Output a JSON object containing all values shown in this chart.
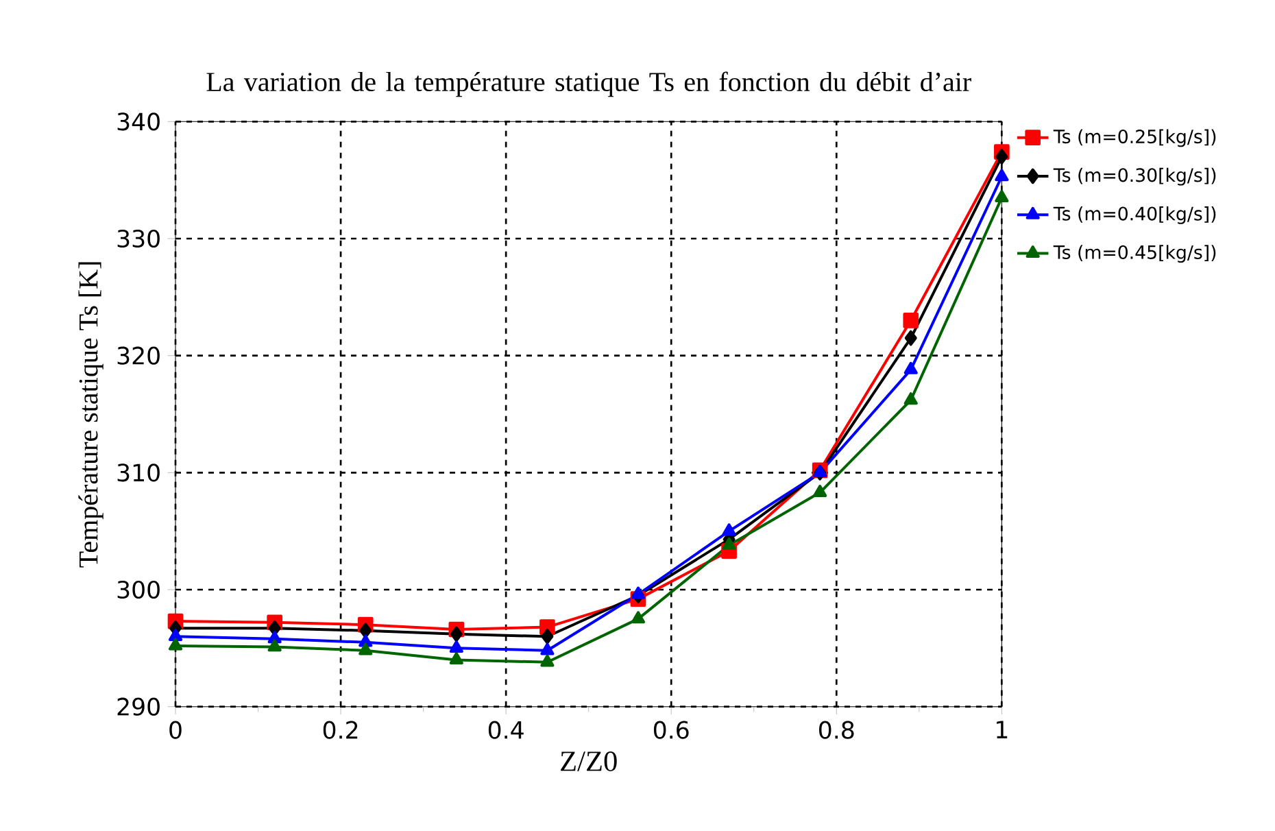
{
  "chart_data": {
    "type": "line",
    "title": "La variation de la température  statique Ts en fonction du débit d’air",
    "xlabel": "Z/Z0",
    "ylabel": "Température statique Ts  [K]",
    "x": [
      0,
      0.12,
      0.23,
      0.34,
      0.45,
      0.56,
      0.67,
      0.78,
      0.89,
      1
    ],
    "series": [
      {
        "name": "Ts (m=0.25[kg/s])",
        "color": "#ff0000",
        "marker": "square",
        "values": [
          297.3,
          297.2,
          297.0,
          296.6,
          296.8,
          299.2,
          303.3,
          310.2,
          323.0,
          337.4
        ]
      },
      {
        "name": "Ts (m=0.30[kg/s])",
        "color": "#000000",
        "marker": "diamond",
        "values": [
          296.7,
          296.7,
          296.5,
          296.2,
          296.0,
          299.5,
          304.3,
          310.0,
          321.5,
          337.0
        ]
      },
      {
        "name": "Ts (m=0.40[kg/s])",
        "color": "#0000ff",
        "marker": "triangle",
        "values": [
          296.0,
          295.8,
          295.5,
          295.0,
          294.8,
          299.6,
          305.0,
          310.0,
          318.8,
          335.3
        ]
      },
      {
        "name": "Ts (m=0.45[kg/s])",
        "color": "#006400",
        "marker": "triangle",
        "values": [
          295.2,
          295.1,
          294.8,
          294.0,
          293.8,
          297.5,
          303.8,
          308.3,
          316.2,
          333.5
        ]
      }
    ],
    "xlim": [
      0,
      1
    ],
    "ylim": [
      290,
      340
    ],
    "xticks": [
      0,
      0.2,
      0.4,
      0.6,
      0.8,
      1
    ],
    "yticks": [
      290,
      300,
      310,
      320,
      330,
      340
    ],
    "grid": true,
    "legend": "right",
    "line_style": "solid"
  }
}
